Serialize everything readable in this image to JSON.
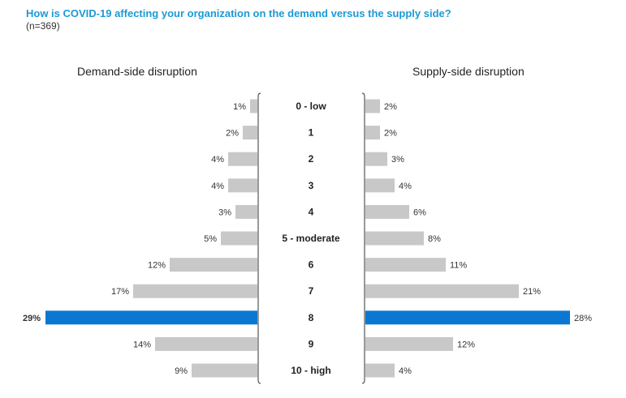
{
  "chart_data": {
    "type": "bar",
    "title": "How is COVID-19 affecting your organization on the demand versus the supply side?",
    "subtitle": "(n=369)",
    "categories": [
      "0 - low",
      "1",
      "2",
      "3",
      "4",
      "5 - moderate",
      "6",
      "7",
      "8",
      "9",
      "10 - high"
    ],
    "series": [
      {
        "name": "Demand-side disruption",
        "values": [
          1,
          2,
          4,
          4,
          3,
          5,
          12,
          17,
          29,
          14,
          9
        ],
        "labels": [
          "1%",
          "2%",
          "4%",
          "4%",
          "3%",
          "5%",
          "12%",
          "17%",
          "29%",
          "14%",
          "9%"
        ]
      },
      {
        "name": "Supply-side disruption",
        "values": [
          2,
          2,
          3,
          4,
          6,
          8,
          11,
          21,
          28,
          12,
          4
        ],
        "labels": [
          "2%",
          "2%",
          "3%",
          "4%",
          "6%",
          "8%",
          "11%",
          "21%",
          "28%",
          "12%",
          "4%"
        ]
      }
    ],
    "highlight_category": "8",
    "colors": {
      "bar": "#c8c8c8",
      "highlight": "#0a78d2",
      "title": "#1a9ad6",
      "axis": "#555555"
    }
  }
}
